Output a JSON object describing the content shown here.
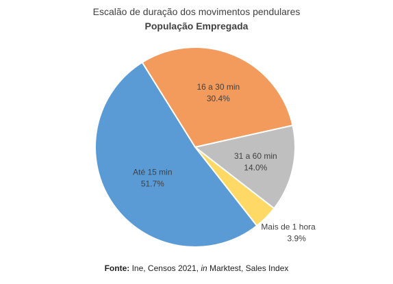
{
  "chart_data": {
    "type": "pie",
    "title": "Escalão de duração dos movimentos pendulares",
    "subtitle": "População Empregada",
    "slices": [
      {
        "label": "16 a 30 min",
        "value": 30.4,
        "value_label": "30.4%",
        "color": "#F29B5D"
      },
      {
        "label": "31 a 60 min",
        "value": 14.0,
        "value_label": "14.0%",
        "color": "#BFBFBF"
      },
      {
        "label": "Mais de 1 hora",
        "value": 3.9,
        "value_label": "3.9%",
        "color": "#FFD966"
      },
      {
        "label": "Até 15 min",
        "value": 51.7,
        "value_label": "51.7%",
        "color": "#5B9BD5"
      }
    ],
    "start_angle_deg": 328,
    "direction": "clockwise"
  },
  "source": {
    "prefix": "Fonte:",
    "text1": " Ine, Censos 2021, ",
    "italic": "in",
    "text2": " Marktest, Sales Index"
  }
}
